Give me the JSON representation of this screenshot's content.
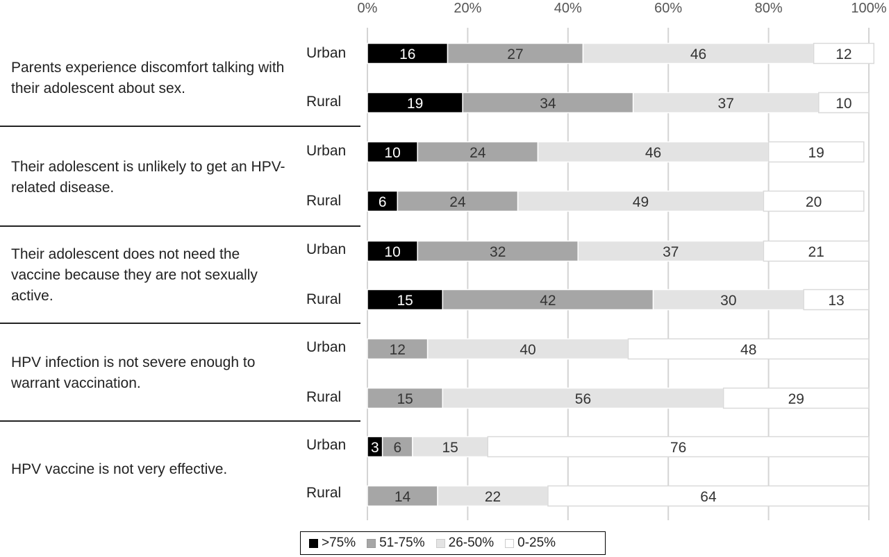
{
  "chart_data": {
    "type": "bar",
    "orientation": "horizontal",
    "stacked": true,
    "xlim": [
      0,
      100
    ],
    "x_ticks": [
      "0%",
      "20%",
      "40%",
      "60%",
      "80%",
      "100%"
    ],
    "grid": "vertical",
    "legend_position": "bottom",
    "groups": [
      "Parents experience discomfort talking with their adolescent about sex.",
      "Their adolescent is unlikely to get an HPV-related disease.",
      "Their adolescent does not need the vaccine because they are not sexually active.",
      "HPV infection is not severe enough to warrant vaccination.",
      "HPV vaccine is not very effective."
    ],
    "conditions": [
      "Urban",
      "Rural"
    ],
    "series": [
      {
        "name": ">75%",
        "color": "#000000",
        "values": [
          [
            16,
            19
          ],
          [
            10,
            6
          ],
          [
            10,
            15
          ],
          [
            0,
            0
          ],
          [
            3,
            0
          ]
        ]
      },
      {
        "name": "51-75%",
        "color": "#a6a6a6",
        "values": [
          [
            27,
            34
          ],
          [
            24,
            24
          ],
          [
            32,
            42
          ],
          [
            12,
            15
          ],
          [
            6,
            14
          ]
        ]
      },
      {
        "name": "26-50%",
        "color": "#e3e3e3",
        "values": [
          [
            46,
            37
          ],
          [
            46,
            49
          ],
          [
            37,
            30
          ],
          [
            40,
            56
          ],
          [
            15,
            22
          ]
        ]
      },
      {
        "name": "0-25%",
        "color": "#ffffff",
        "values": [
          [
            12,
            10
          ],
          [
            19,
            20
          ],
          [
            21,
            13
          ],
          [
            48,
            29
          ],
          [
            76,
            64
          ]
        ]
      }
    ]
  }
}
